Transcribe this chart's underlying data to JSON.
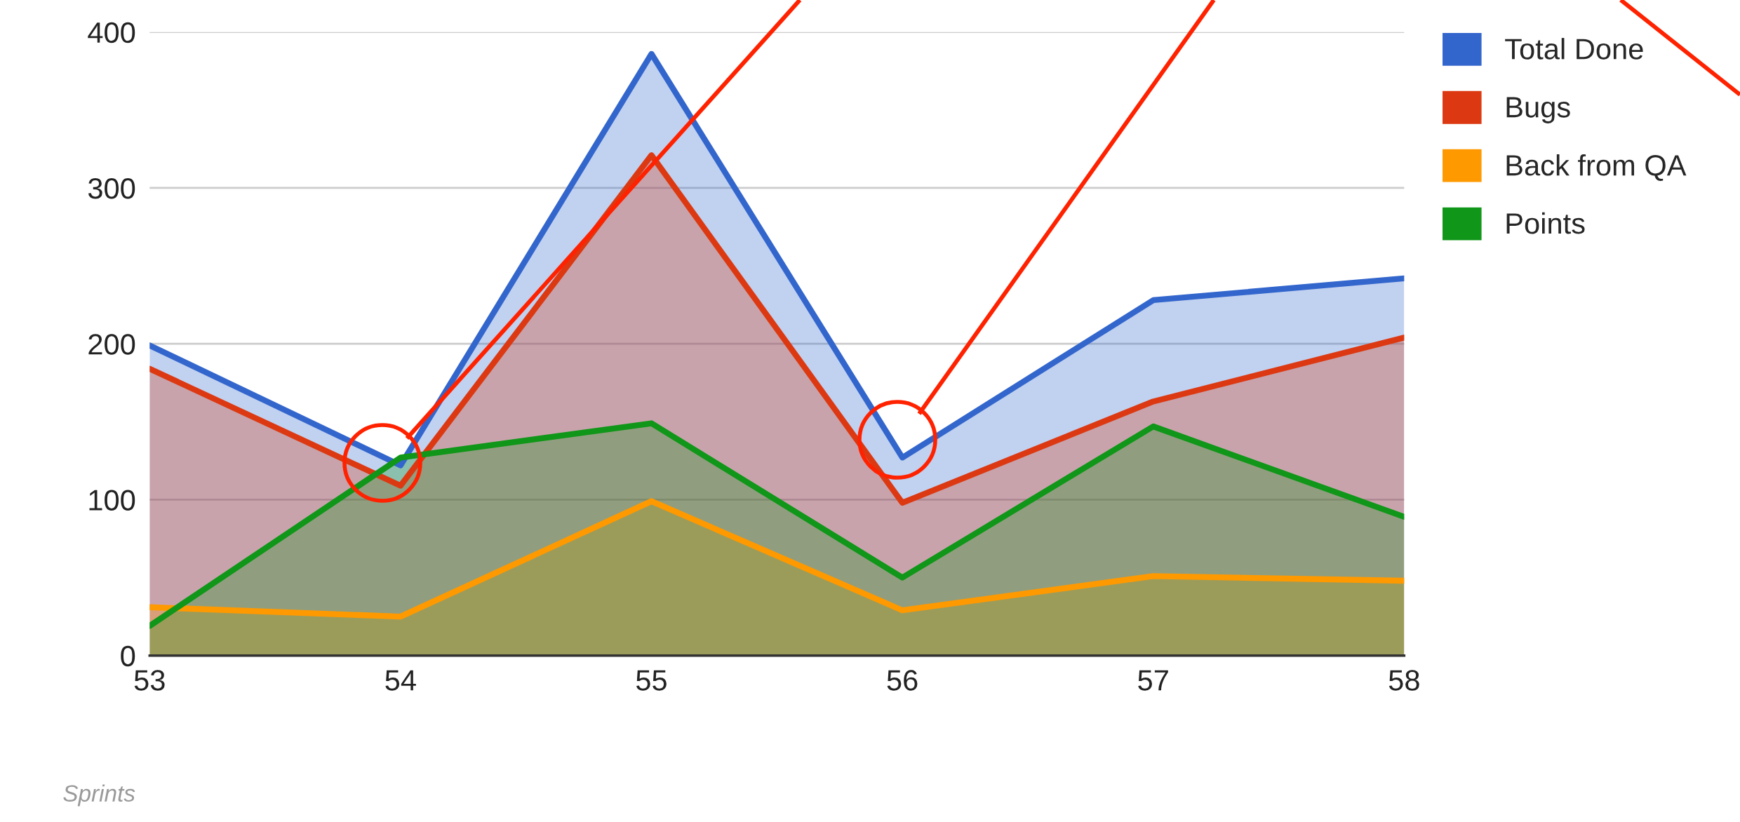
{
  "chart_data": {
    "type": "area",
    "xlabel": "Sprints",
    "x": [
      53,
      54,
      55,
      56,
      57,
      58
    ],
    "series": [
      {
        "name": "Total Done",
        "color": "#3366cc",
        "values": [
          199,
          122,
          386,
          127,
          228,
          242
        ]
      },
      {
        "name": "Bugs",
        "color": "#dc3912",
        "values": [
          184,
          109,
          321,
          98,
          163,
          204
        ]
      },
      {
        "name": "Back from QA",
        "color": "#ff9900",
        "values": [
          31,
          25,
          99,
          29,
          51,
          48
        ]
      },
      {
        "name": "Points",
        "color": "#109618",
        "values": [
          19,
          127,
          149,
          50,
          147,
          89
        ]
      }
    ],
    "xlim": [
      53,
      58
    ],
    "xticks": [
      53,
      54,
      55,
      56,
      57,
      58
    ],
    "ylim": [
      0,
      400
    ],
    "yticks": [
      0,
      100,
      200,
      300,
      400
    ],
    "grid": "y",
    "legend": "right"
  }
}
